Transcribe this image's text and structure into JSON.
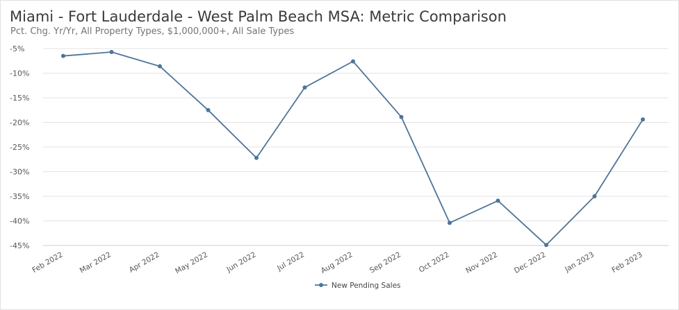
{
  "chart_data": {
    "type": "line",
    "title": "Miami - Fort Lauderdale - West Palm Beach MSA: Metric Comparison",
    "subtitle": "Pct. Chg. Yr/Yr, All Property Types, $1,000,000+, All Sale Types",
    "xlabel": "",
    "ylabel": "",
    "categories": [
      "Feb 2022",
      "Mar 2022",
      "Apr 2022",
      "May 2022",
      "Jun 2022",
      "Jul 2022",
      "Aug 2022",
      "Sep 2022",
      "Oct 2022",
      "Nov 2022",
      "Dec 2022",
      "Jan 2023",
      "Feb 2023"
    ],
    "ylim": [
      -45,
      -5
    ],
    "yticks": [
      -5,
      -10,
      -15,
      -20,
      -25,
      -30,
      -35,
      -40,
      -45
    ],
    "ytick_labels": [
      "-5%",
      "-10%",
      "-15%",
      "-20%",
      "-25%",
      "-30%",
      "-35%",
      "-40%",
      "-45%"
    ],
    "grid": "horizontal",
    "legend_position": "bottom-center",
    "series": [
      {
        "name": "New Pending Sales",
        "color": "#4e7499",
        "values": [
          -6.5,
          -5.7,
          -8.6,
          -17.5,
          -27.2,
          -12.9,
          -7.6,
          -18.9,
          -40.4,
          -35.9,
          -44.9,
          -35.0,
          -19.4
        ]
      }
    ]
  }
}
